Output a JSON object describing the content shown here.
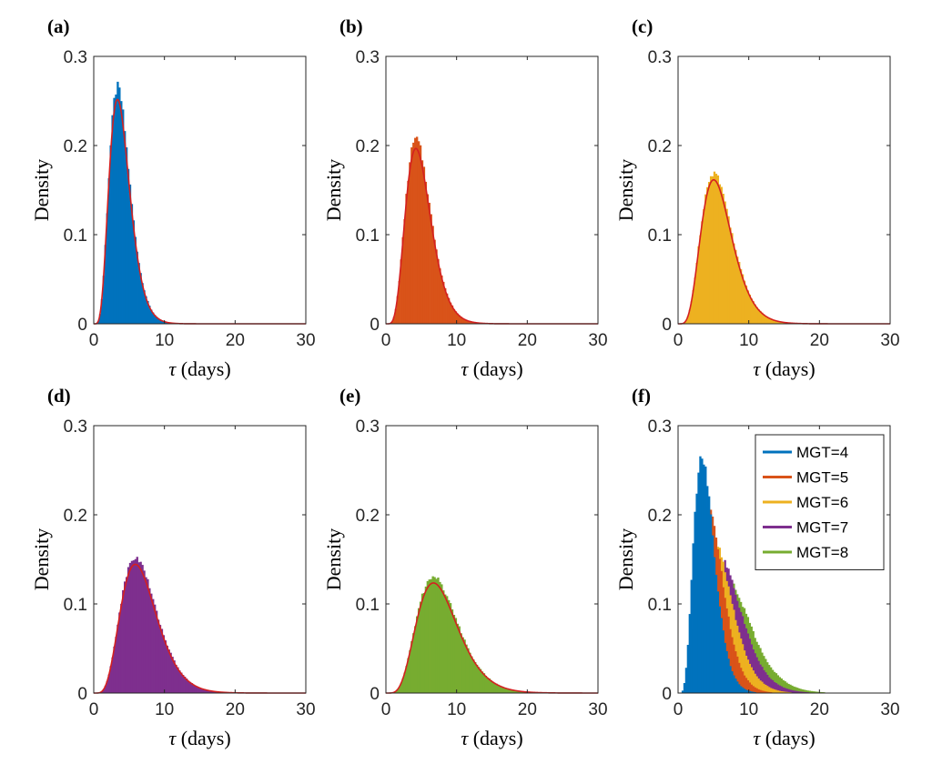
{
  "chart_data": [
    {
      "type": "histogram",
      "panel_label": "(a)",
      "xlabel_symbol": "τ",
      "xlabel_unit": " (days)",
      "ylabel": "Density",
      "xlim": [
        0,
        30
      ],
      "ylim": [
        0,
        0.3
      ],
      "xticks": [
        "0",
        "10",
        "20",
        "30"
      ],
      "yticks": [
        "0",
        "0.1",
        "0.2",
        "0.3"
      ],
      "series": [
        {
          "mean": 4,
          "sd": 1.6,
          "peak": 0.265,
          "color": "#0072BD"
        }
      ],
      "fit_curve": {
        "mean": 4,
        "sd": 1.6,
        "color": "#D42020"
      }
    },
    {
      "type": "histogram",
      "panel_label": "(b)",
      "xlabel_symbol": "τ",
      "xlabel_unit": " (days)",
      "ylabel": "Density",
      "xlim": [
        0,
        30
      ],
      "ylim": [
        0,
        0.3
      ],
      "xticks": [
        "0",
        "10",
        "20",
        "30"
      ],
      "yticks": [
        "0",
        "0.1",
        "0.2",
        "0.3"
      ],
      "series": [
        {
          "mean": 5,
          "sd": 1.95,
          "peak": 0.207,
          "color": "#D95319"
        }
      ],
      "fit_curve": {
        "mean": 5,
        "sd": 1.95,
        "color": "#D42020"
      }
    },
    {
      "type": "histogram",
      "panel_label": "(c)",
      "xlabel_symbol": "τ",
      "xlabel_unit": " (days)",
      "ylabel": "Density",
      "xlim": [
        0,
        30
      ],
      "ylim": [
        0,
        0.3
      ],
      "xticks": [
        "0",
        "10",
        "20",
        "30"
      ],
      "yticks": [
        "0",
        "0.1",
        "0.2",
        "0.3"
      ],
      "series": [
        {
          "mean": 6,
          "sd": 2.4,
          "peak": 0.17,
          "color": "#EDB120"
        }
      ],
      "fit_curve": {
        "mean": 6,
        "sd": 2.4,
        "color": "#D42020"
      }
    },
    {
      "type": "histogram",
      "panel_label": "(d)",
      "xlabel_symbol": "τ",
      "xlabel_unit": " (days)",
      "ylabel": "Density",
      "xlim": [
        0,
        30
      ],
      "ylim": [
        0,
        0.3
      ],
      "xticks": [
        "0",
        "10",
        "20",
        "30"
      ],
      "yticks": [
        "0",
        "0.1",
        "0.2",
        "0.3"
      ],
      "series": [
        {
          "mean": 7,
          "sd": 2.8,
          "peak": 0.152,
          "color": "#7E2F8E"
        }
      ],
      "fit_curve": {
        "mean": 7,
        "sd": 2.8,
        "color": "#D42020"
      }
    },
    {
      "type": "histogram",
      "panel_label": "(e)",
      "xlabel_symbol": "τ",
      "xlabel_unit": " (days)",
      "ylabel": "Density",
      "xlim": [
        0,
        30
      ],
      "ylim": [
        0,
        0.3
      ],
      "xticks": [
        "0",
        "10",
        "20",
        "30"
      ],
      "yticks": [
        "0",
        "0.1",
        "0.2",
        "0.3"
      ],
      "series": [
        {
          "mean": 8,
          "sd": 3.2,
          "peak": 0.13,
          "color": "#77AC30"
        }
      ],
      "fit_curve": {
        "mean": 8,
        "sd": 3.2,
        "color": "#D42020"
      }
    },
    {
      "type": "histogram",
      "panel_label": "(f)",
      "xlabel_symbol": "τ",
      "xlabel_unit": " (days)",
      "ylabel": "Density",
      "xlim": [
        0,
        30
      ],
      "ylim": [
        0,
        0.3
      ],
      "xticks": [
        "0",
        "10",
        "20",
        "30"
      ],
      "yticks": [
        "0",
        "0.1",
        "0.2",
        "0.3"
      ],
      "legend_position": "top-right",
      "series": [
        {
          "name": "MGT=4",
          "mean": 4,
          "sd": 1.6,
          "peak": 0.265,
          "color": "#0072BD"
        },
        {
          "name": "MGT=5",
          "mean": 5,
          "sd": 1.95,
          "peak": 0.207,
          "color": "#D95319"
        },
        {
          "name": "MGT=6",
          "mean": 6,
          "sd": 2.4,
          "peak": 0.17,
          "color": "#EDB120"
        },
        {
          "name": "MGT=7",
          "mean": 7,
          "sd": 2.8,
          "peak": 0.152,
          "color": "#7E2F8E"
        },
        {
          "name": "MGT=8",
          "mean": 8,
          "sd": 3.2,
          "peak": 0.13,
          "color": "#77AC30"
        }
      ]
    }
  ]
}
